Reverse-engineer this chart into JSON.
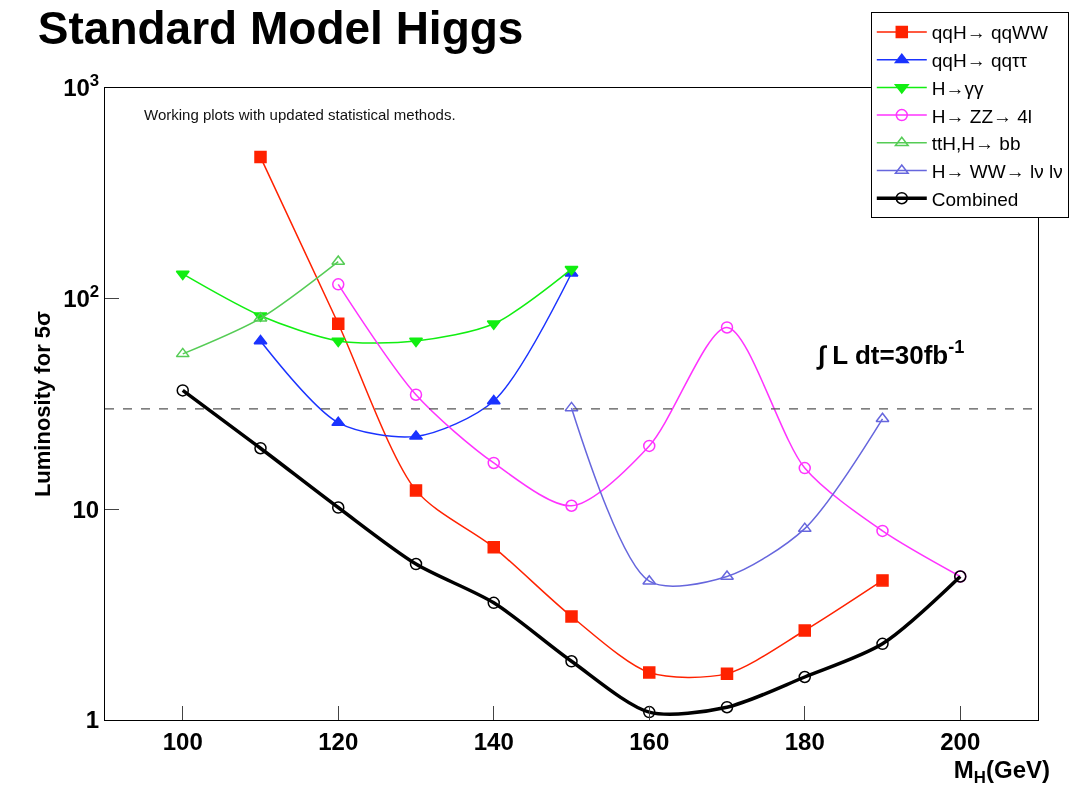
{
  "chart_data": {
    "type": "line",
    "title": "Standard Model Higgs",
    "xlabel": "M$_{H}$(GeV)",
    "ylabel": "Luminosity for 5σ",
    "log": "y",
    "grid": false,
    "legend": "top right",
    "line_style": "solid",
    "xlim": [
      90,
      210
    ],
    "xticks": [
      100,
      120,
      140,
      160,
      180,
      200
    ],
    "ylim": [
      1,
      1000
    ],
    "yticks": [
      1,
      10,
      {
        "value": 100,
        "label": "10$^{2}$"
      },
      {
        "value": 1000,
        "label": "10$^{3}$"
      }
    ],
    "annotations": [
      "Working plots with updated statistical methods.",
      "∫ L dt=30fb$^{-1}$"
    ],
    "ref_lines": [
      {
        "axis": "y",
        "value": 30,
        "line_style": "dashed",
        "color": "#555555"
      }
    ],
    "series": [
      {
        "name": "qqH→ qqWW",
        "color": "#ff2200",
        "marker": "square",
        "x": [
          110,
          120,
          130,
          140,
          150,
          160,
          170,
          180,
          190
        ],
        "values": [
          470,
          76,
          12.3,
          6.6,
          3.1,
          1.68,
          1.66,
          2.66,
          4.6
        ]
      },
      {
        "name": "qqH→ qqττ",
        "color": "#1a33ff",
        "marker": "triangle",
        "x": [
          110,
          120,
          130,
          140,
          150
        ],
        "values": [
          63,
          25.8,
          22.2,
          32.7,
          132
        ]
      },
      {
        "name": "H→γγ",
        "color": "#11ee11",
        "marker": "triangle-down",
        "x": [
          100,
          110,
          120,
          130,
          140,
          150
        ],
        "values": [
          131,
          83,
          63,
          63,
          76,
          138
        ]
      },
      {
        "name": "H→ ZZ→ 4l",
        "color": "#ff33ff",
        "marker": "circle-open",
        "x": [
          120,
          130,
          140,
          150,
          160,
          170,
          180,
          190,
          200
        ],
        "values": [
          117,
          35,
          16.6,
          10.4,
          20,
          73,
          15.7,
          7.9,
          4.8
        ]
      },
      {
        "name": "ttH,H→ bb",
        "color": "#55cc55",
        "marker": "triangle-open",
        "x": [
          100,
          110,
          120
        ],
        "values": [
          54.7,
          80.7,
          150
        ]
      },
      {
        "name": "H→ WW→ lν lν",
        "color": "#6666dd",
        "marker": "triangle-open",
        "x": [
          150,
          160,
          170,
          180,
          190
        ],
        "values": [
          30.3,
          4.56,
          4.8,
          8.1,
          26.9
        ]
      },
      {
        "name": "Combined",
        "color": "#000000",
        "marker": "circle-open",
        "x": [
          100,
          110,
          120,
          130,
          140,
          150,
          160,
          170,
          180,
          190,
          200
        ],
        "values": [
          36.7,
          19.5,
          10.2,
          5.5,
          3.6,
          1.9,
          1.09,
          1.15,
          1.6,
          2.3,
          4.8
        ]
      }
    ]
  }
}
